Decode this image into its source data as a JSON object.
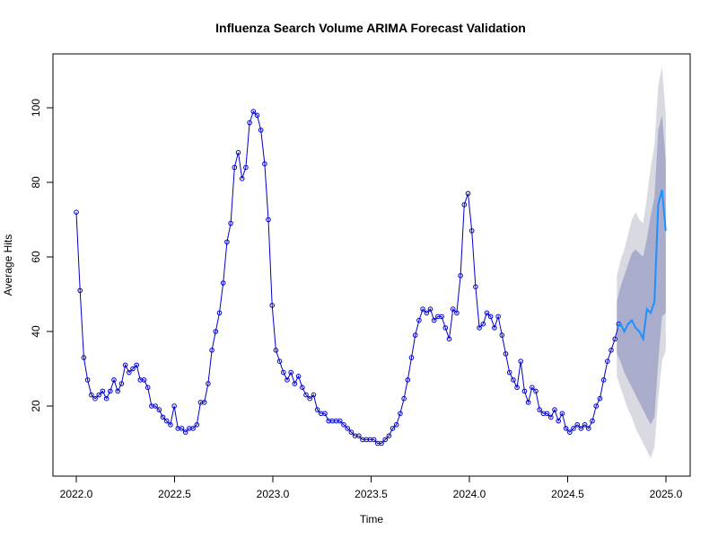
{
  "chart_data": {
    "type": "line",
    "title": "Influenza Search Volume ARIMA Forecast Validation",
    "xlabel": "Time",
    "ylabel": "Average Hits",
    "xlim": [
      2022.0,
      2025.0
    ],
    "ylim": [
      5,
      112
    ],
    "x_ticks": [
      "2022.0",
      "2022.5",
      "2023.0",
      "2023.5",
      "2024.0",
      "2024.5",
      "2025.0"
    ],
    "y_ticks": [
      "20",
      "40",
      "60",
      "80",
      "100"
    ],
    "grid": false,
    "legend": "none",
    "series": [
      {
        "role": "observed",
        "style": "line with open circles",
        "color": "#0000CC",
        "start": 2022.0,
        "step_weeks": 1,
        "values": [
          72,
          51,
          33,
          27,
          23,
          22,
          23,
          24,
          22,
          24,
          27,
          24,
          26,
          31,
          29,
          30,
          31,
          27,
          27,
          25,
          20,
          20,
          19,
          17,
          16,
          15,
          20,
          14,
          14,
          13,
          14,
          14,
          15,
          21,
          21,
          26,
          35,
          40,
          45,
          53,
          64,
          69,
          84,
          88,
          81,
          84,
          96,
          99,
          98,
          94,
          85,
          70,
          47,
          35,
          32,
          29,
          27,
          29,
          26,
          28,
          25,
          23,
          22,
          23,
          19,
          18,
          18,
          16,
          16,
          16,
          16,
          15,
          14,
          13,
          12,
          12,
          11,
          11,
          11,
          11,
          10,
          10,
          11,
          12,
          14,
          15,
          18,
          22,
          27,
          33,
          39,
          43,
          46,
          45,
          46,
          43,
          44,
          44,
          41,
          38,
          46,
          45,
          55,
          74,
          77,
          67,
          52,
          41,
          42,
          45,
          44,
          41,
          44,
          39,
          34,
          29,
          27,
          25,
          32,
          24,
          21,
          25,
          24,
          19,
          18,
          18,
          17,
          19,
          16,
          18,
          14,
          13,
          14,
          15,
          14,
          15,
          14,
          16,
          20,
          22,
          27,
          32,
          35,
          38,
          42
        ]
      },
      {
        "role": "forecast",
        "color": "#1E90FF",
        "start": 2024.75,
        "step_weeks": 1,
        "values": [
          41,
          42,
          40,
          42,
          43,
          41,
          40,
          38,
          46,
          45,
          48,
          74,
          78,
          67
        ]
      }
    ],
    "bands": [
      {
        "name": "95% interval",
        "color": "#D9D9E1",
        "lower": [
          28,
          25,
          22,
          19,
          17,
          14,
          12,
          10,
          8,
          6,
          9,
          22,
          32,
          35
        ],
        "upper": [
          55,
          59,
          62,
          66,
          70,
          72,
          70,
          69,
          76,
          84,
          90,
          106,
          111,
          98
        ]
      },
      {
        "name": "80% interval",
        "color": "#A9ADCB",
        "lower": [
          34,
          32,
          29,
          27,
          25,
          23,
          21,
          19,
          17,
          15,
          17,
          32,
          44,
          45
        ],
        "upper": [
          48,
          52,
          55,
          58,
          61,
          62,
          61,
          60,
          65,
          71,
          76,
          94,
          98,
          86
        ]
      }
    ]
  }
}
